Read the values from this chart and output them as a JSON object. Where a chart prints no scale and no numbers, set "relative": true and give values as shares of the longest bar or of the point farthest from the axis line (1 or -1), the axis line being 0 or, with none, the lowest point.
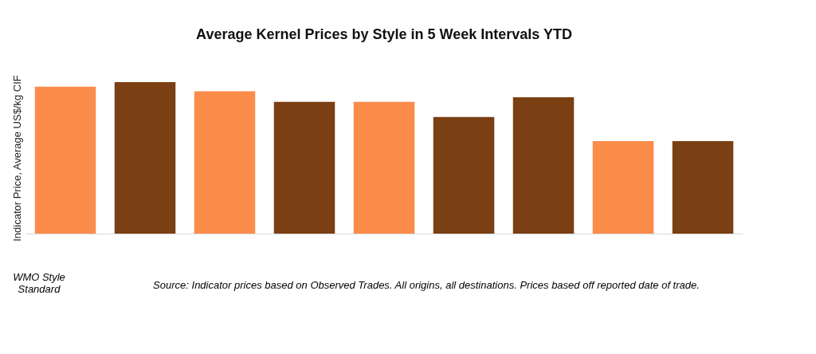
{
  "chart_data": {
    "type": "bar",
    "title": "Average Kernel Prices by Style in 5 Week Intervals YTD",
    "ylabel": "Indicator Price, Average US$/kg CIF",
    "categories": [
      null,
      null,
      null,
      null,
      null,
      null,
      null,
      null,
      null
    ],
    "values": [
      0.97,
      1,
      0.94,
      0.87,
      0.87,
      0.77,
      0.9,
      0.61,
      0.61
    ],
    "colors": [
      "#fb8c4a",
      "#7a3f12",
      "#fb8c4a",
      "#7a3f12",
      "#fb8c4a",
      "#7a3f12",
      "#7a3f12",
      "#fb8c4a",
      "#7a3f12"
    ],
    "relative": true,
    "annotations": [
      "WMO Style Standard",
      "Source: Indicator prices based on Observed Trades. All origins, all destinations. Prices based off reported date of trade."
    ]
  }
}
